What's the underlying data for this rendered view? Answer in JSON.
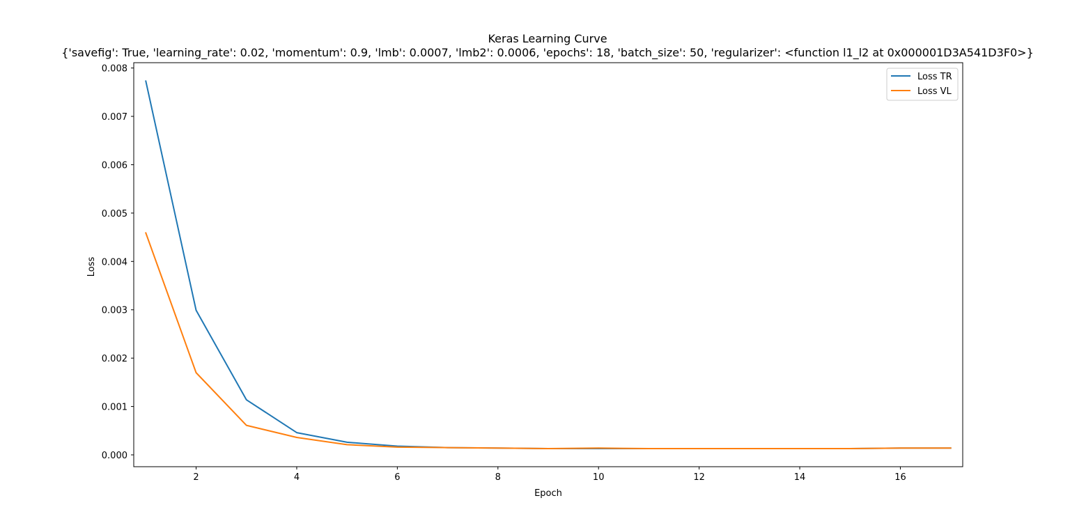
{
  "chart_data": {
    "type": "line",
    "title": "Keras Learning Curve",
    "subtitle": "{'savefig': True, 'learning_rate': 0.02, 'momentum': 0.9, 'lmb': 0.0007, 'lmb2': 0.0006, 'epochs': 18, 'batch_size': 50, 'regularizer': <function l1_l2 at 0x000001D3A541D3F0>}",
    "xlabel": "Epoch",
    "ylabel": "Loss",
    "xlim": [
      0.76,
      17.24
    ],
    "ylim": [
      -0.000245,
      0.00811
    ],
    "xticks": [
      2,
      4,
      6,
      8,
      10,
      12,
      14,
      16
    ],
    "yticks": [
      0.0,
      0.001,
      0.002,
      0.003,
      0.004,
      0.005,
      0.006,
      0.007,
      0.008
    ],
    "ytick_labels": [
      "0.000",
      "0.001",
      "0.002",
      "0.003",
      "0.004",
      "0.005",
      "0.006",
      "0.007",
      "0.008"
    ],
    "grid": false,
    "legend": "top-right",
    "x": [
      1,
      2,
      3,
      4,
      5,
      6,
      7,
      8,
      9,
      10,
      11,
      12,
      13,
      14,
      15,
      16,
      17
    ],
    "series": [
      {
        "name": "Loss TR",
        "color": "#1f77b4",
        "values": [
          0.00773,
          0.00299,
          0.00114,
          0.00046,
          0.00026,
          0.00018,
          0.00015,
          0.00014,
          0.00013,
          0.00013,
          0.00013,
          0.00013,
          0.00013,
          0.00013,
          0.00013,
          0.00014,
          0.00014
        ]
      },
      {
        "name": "Loss VL",
        "color": "#ff7f0e",
        "values": [
          0.00459,
          0.0017,
          0.00061,
          0.00036,
          0.00021,
          0.00016,
          0.00015,
          0.00014,
          0.00013,
          0.00014,
          0.00013,
          0.00013,
          0.00013,
          0.00013,
          0.00013,
          0.00014,
          0.00014
        ]
      }
    ]
  }
}
